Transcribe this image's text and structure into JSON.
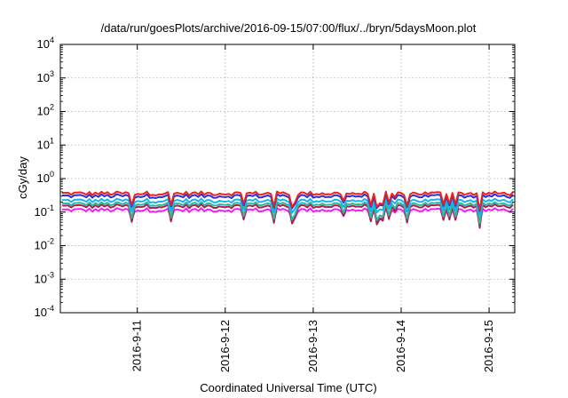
{
  "chart_data": {
    "type": "line",
    "title": "/data/run/goesPlots/archive/2016-09-15/07:00/flux/../bryn/5daysMoon.plot",
    "xlabel": "Coordinated Universal Time (UTC)",
    "ylabel": "cGy/day",
    "yscale": "log",
    "ylim": [
      0.0001,
      10000
    ],
    "xlim": [
      "2016-09-10 03:00",
      "2016-09-15 07:00"
    ],
    "grid": true,
    "x_ticks": [
      "2016-9-11",
      "2016-9-12",
      "2016-9-13",
      "2016-9-14",
      "2016-9-15"
    ],
    "y_ticks": [
      {
        "base": "10",
        "exp": "-4",
        "value": 0.0001
      },
      {
        "base": "10",
        "exp": "-3",
        "value": 0.001
      },
      {
        "base": "10",
        "exp": "-2",
        "value": 0.01
      },
      {
        "base": "10",
        "exp": "-1",
        "value": 0.1
      },
      {
        "base": "10",
        "exp": "0",
        "value": 1
      },
      {
        "base": "10",
        "exp": "1",
        "value": 10
      },
      {
        "base": "10",
        "exp": "2",
        "value": 100
      },
      {
        "base": "10",
        "exp": "3",
        "value": 1000
      },
      {
        "base": "10",
        "exp": "4",
        "value": 10000
      }
    ],
    "series": [
      {
        "color": "#e8231f",
        "baseline": 0.36,
        "dip": 0.62
      },
      {
        "color": "#2d2ddc",
        "baseline": 0.3,
        "dip": 0.55
      },
      {
        "color": "#14b4ec",
        "baseline": 0.22,
        "dip": 0.55
      },
      {
        "color": "#2fb79e",
        "baseline": 0.175,
        "dip": 0.72
      },
      {
        "color": "#a5224f",
        "baseline": 0.15,
        "dip": 0.8
      },
      {
        "color": "#f01ff0",
        "baseline": 0.115,
        "dip": 0.5
      }
    ]
  }
}
